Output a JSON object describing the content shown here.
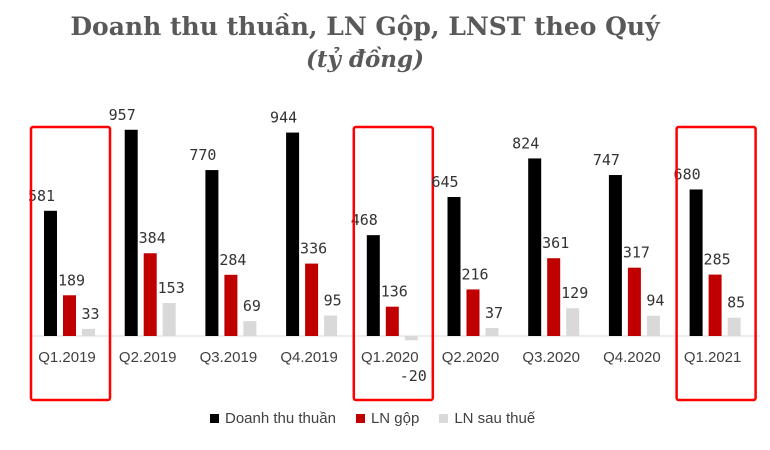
{
  "chart_data": {
    "type": "bar",
    "title": "Doanh thu thuần, LN Gộp, LNST theo Quý",
    "subtitle": "(tỷ đồng)",
    "categories": [
      "Q1.2019",
      "Q2.2019",
      "Q3.2019",
      "Q4.2019",
      "Q1.2020",
      "Q2.2020",
      "Q3.2020",
      "Q4.2020",
      "Q1.2021"
    ],
    "series": [
      {
        "name": "Doanh thu thuần",
        "color": "#000000",
        "values": [
          581,
          957,
          770,
          944,
          468,
          645,
          824,
          747,
          680
        ]
      },
      {
        "name": "LN gộp",
        "color": "#c00000",
        "values": [
          189,
          384,
          284,
          336,
          136,
          216,
          361,
          317,
          285
        ]
      },
      {
        "name": "LN sau thuế",
        "color": "#d9d9d9",
        "values": [
          33,
          153,
          69,
          95,
          -20,
          37,
          129,
          94,
          85
        ]
      }
    ],
    "highlighted_categories": [
      "Q1.2019",
      "Q1.2020",
      "Q1.2021"
    ],
    "highlight_color": "#ff0000",
    "grid": false,
    "legend_position": "bottom"
  }
}
